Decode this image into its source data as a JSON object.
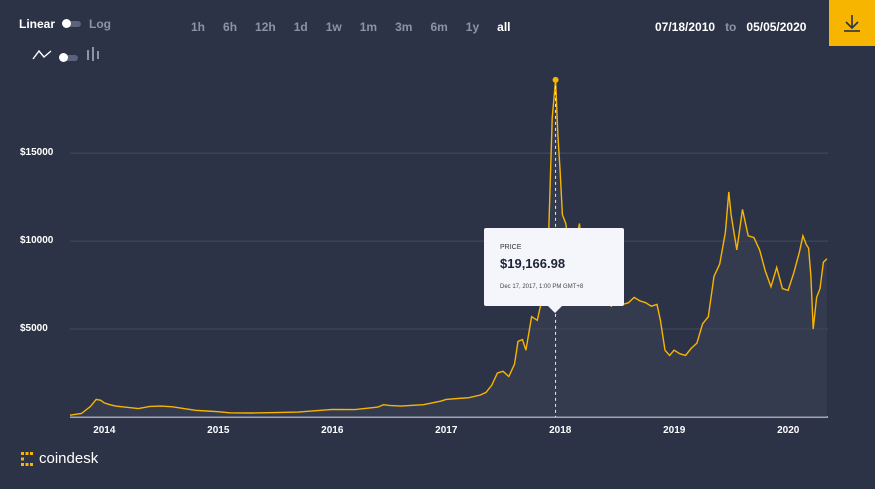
{
  "controls": {
    "scale_linear": "Linear",
    "scale_log": "Log",
    "ranges": [
      "1h",
      "6h",
      "12h",
      "1d",
      "1w",
      "1m",
      "3m",
      "6m",
      "1y",
      "all"
    ],
    "active_range": "all",
    "date_from": "07/18/2010",
    "date_to_word": "to",
    "date_to": "05/05/2020",
    "download_icon": "download-icon",
    "line_icon": "line-chart-icon",
    "candle_icon": "candlestick-icon"
  },
  "tooltip": {
    "label": "PRICE",
    "price": "$19,166.98",
    "date": "Dec 17, 2017, 1:00 PM GMT+8"
  },
  "brand": {
    "name": "coindesk"
  },
  "colors": {
    "background": "#2d3347",
    "line": "#f7b500",
    "accent": "#f7b500"
  },
  "chart_data": {
    "type": "area",
    "title": "",
    "xlabel": "",
    "ylabel": "",
    "y_tick_labels": [
      "$5000",
      "$10000",
      "$15000"
    ],
    "y_ticks": [
      5000,
      10000,
      15000
    ],
    "x_tick_labels": [
      "2014",
      "2015",
      "2016",
      "2017",
      "2018",
      "2019",
      "2020"
    ],
    "x_ticks": [
      2014,
      2015,
      2016,
      2017,
      2018,
      2019,
      2020
    ],
    "xlim": [
      2013.7,
      2020.35
    ],
    "ylim": [
      0,
      19500
    ],
    "grid": true,
    "series": [
      {
        "x": [
          2013.7,
          2013.8,
          2013.88,
          2013.93,
          2013.97,
          2014.0,
          2014.05,
          2014.1,
          2014.2,
          2014.3,
          2014.4,
          2014.5,
          2014.6,
          2014.7,
          2014.8,
          2014.9,
          2015.0,
          2015.1,
          2015.3,
          2015.5,
          2015.7,
          2015.9,
          2016.0,
          2016.2,
          2016.4,
          2016.45,
          2016.5,
          2016.6,
          2016.8,
          2016.95,
          2017.0,
          2017.1,
          2017.2,
          2017.3,
          2017.35,
          2017.4,
          2017.45,
          2017.5,
          2017.55,
          2017.6,
          2017.63,
          2017.67,
          2017.7,
          2017.75,
          2017.8,
          2017.83,
          2017.87,
          2017.9,
          2017.93,
          2017.96,
          2017.98,
          2018.0,
          2018.02,
          2018.05,
          2018.08,
          2018.1,
          2018.13,
          2018.17,
          2018.2,
          2018.25,
          2018.3,
          2018.35,
          2018.4,
          2018.45,
          2018.5,
          2018.55,
          2018.6,
          2018.65,
          2018.7,
          2018.75,
          2018.8,
          2018.85,
          2018.88,
          2018.92,
          2018.96,
          2019.0,
          2019.05,
          2019.1,
          2019.15,
          2019.2,
          2019.25,
          2019.3,
          2019.35,
          2019.4,
          2019.45,
          2019.48,
          2019.5,
          2019.55,
          2019.6,
          2019.65,
          2019.7,
          2019.75,
          2019.8,
          2019.85,
          2019.9,
          2019.95,
          2020.0,
          2020.05,
          2020.1,
          2020.13,
          2020.16,
          2020.18,
          2020.2,
          2020.22,
          2020.25,
          2020.28,
          2020.31,
          2020.34
        ],
        "y": [
          100,
          200,
          600,
          1000,
          950,
          800,
          700,
          620,
          550,
          480,
          600,
          620,
          580,
          480,
          380,
          340,
          300,
          240,
          230,
          250,
          280,
          380,
          430,
          420,
          560,
          700,
          660,
          620,
          700,
          900,
          1000,
          1050,
          1100,
          1250,
          1400,
          1800,
          2500,
          2600,
          2300,
          3000,
          4300,
          4400,
          3800,
          5700,
          5500,
          6400,
          7800,
          10500,
          17000,
          19166,
          16000,
          14000,
          11500,
          11000,
          9500,
          8700,
          9800,
          11000,
          8200,
          7000,
          9000,
          7500,
          6500,
          6300,
          7500,
          6400,
          6500,
          6800,
          6600,
          6500,
          6300,
          6400,
          5500,
          3800,
          3500,
          3800,
          3600,
          3500,
          3900,
          4200,
          5300,
          5700,
          8000,
          8700,
          10500,
          12800,
          11500,
          9500,
          11800,
          10300,
          10200,
          9500,
          8300,
          7400,
          8500,
          7300,
          7200,
          8200,
          9400,
          10300,
          9800,
          9600,
          8000,
          5000,
          6800,
          7300,
          8800,
          9000
        ]
      }
    ]
  }
}
